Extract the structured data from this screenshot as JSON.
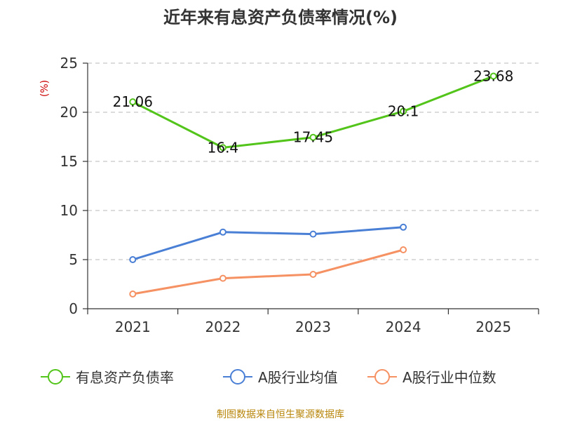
{
  "chart_data": {
    "type": "line",
    "title": "近年来有息资产负债率情况(%)",
    "ylabel": "(%)",
    "xlabel": "",
    "categories": [
      "2021",
      "2022",
      "2023",
      "2024",
      "2025"
    ],
    "ylim": [
      0,
      25
    ],
    "yticks": [
      "0",
      "5",
      "10",
      "15",
      "20",
      "25"
    ],
    "grid": true,
    "legend_position": "bottom",
    "series": [
      {
        "name": "有息资产负债率",
        "color": "#52c41a",
        "values": [
          21.06,
          16.4,
          17.45,
          20.1,
          23.68
        ],
        "labels": [
          "21.06",
          "16.4",
          "17.45",
          "20.1",
          "23.68"
        ]
      },
      {
        "name": "A股行业均值",
        "color": "#4a7fd6",
        "values": [
          5.0,
          7.8,
          7.6,
          8.3,
          null
        ]
      },
      {
        "name": "A股行业中位数",
        "color": "#f59162",
        "values": [
          1.5,
          3.1,
          3.5,
          6.0,
          null
        ]
      }
    ],
    "source": "制图数据来自恒生聚源数据库",
    "unit_color": "#cc0000",
    "source_color": "#b8860b"
  }
}
